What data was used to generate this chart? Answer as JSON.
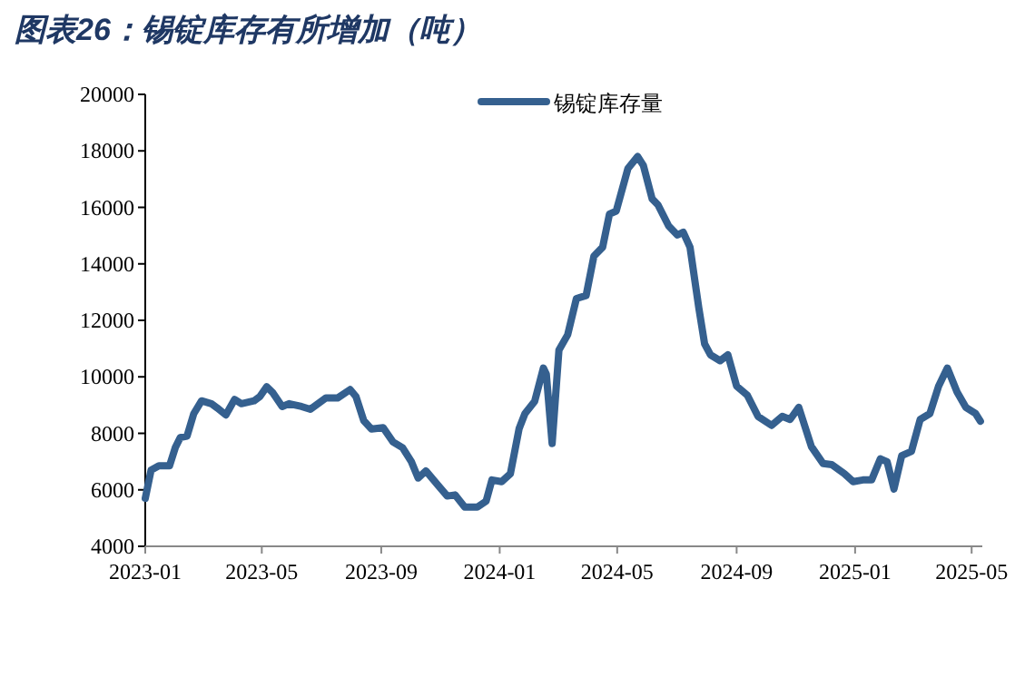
{
  "chart_data": {
    "type": "line",
    "title": "图表26：锡锭库存有所增加（吨）",
    "x": [
      "2023-01-01",
      "2023-01-07",
      "2023-01-15",
      "2023-01-26",
      "2023-02-01",
      "2023-02-06",
      "2023-02-13",
      "2023-02-20",
      "2023-02-28",
      "2023-03-10",
      "2023-03-16",
      "2023-03-25",
      "2023-04-03",
      "2023-04-10",
      "2023-04-23",
      "2023-04-29",
      "2023-05-06",
      "2023-05-12",
      "2023-05-22",
      "2023-05-29",
      "2023-06-11",
      "2023-06-20",
      "2023-07-06",
      "2023-07-18",
      "2023-07-31",
      "2023-08-06",
      "2023-08-14",
      "2023-08-22",
      "2023-09-03",
      "2023-09-13",
      "2023-09-23",
      "2023-10-02",
      "2023-10-09",
      "2023-10-17",
      "2023-10-30",
      "2023-11-08",
      "2023-11-16",
      "2023-11-26",
      "2023-12-09",
      "2023-12-18",
      "2023-12-24",
      "2024-01-03",
      "2024-01-12",
      "2024-01-21",
      "2024-01-27",
      "2024-02-06",
      "2024-02-15",
      "2024-02-18",
      "2024-02-24",
      "2024-03-02",
      "2024-03-11",
      "2024-03-20",
      "2024-03-30",
      "2024-04-07",
      "2024-04-16",
      "2024-04-23",
      "2024-04-30",
      "2024-05-12",
      "2024-05-22",
      "2024-05-28",
      "2024-06-06",
      "2024-06-12",
      "2024-06-23",
      "2024-07-02",
      "2024-07-08",
      "2024-07-15",
      "2024-07-24",
      "2024-07-30",
      "2024-08-05",
      "2024-08-15",
      "2024-08-23",
      "2024-09-01",
      "2024-09-12",
      "2024-09-23",
      "2024-10-07",
      "2024-10-18",
      "2024-10-26",
      "2024-11-04",
      "2024-11-17",
      "2024-11-29",
      "2024-12-08",
      "2024-12-21",
      "2024-12-30",
      "2025-01-09",
      "2025-01-18",
      "2025-01-27",
      "2025-02-03",
      "2025-02-10",
      "2025-02-18",
      "2025-02-28",
      "2025-03-09",
      "2025-03-19",
      "2025-03-28",
      "2025-04-06",
      "2025-04-16",
      "2025-04-25",
      "2025-05-05",
      "2025-05-10"
    ],
    "series": [
      {
        "name": "锡锭库存量",
        "color": "#35608f",
        "values": [
          5700,
          6700,
          6850,
          6850,
          7500,
          7850,
          7900,
          8700,
          9150,
          9050,
          8900,
          8650,
          9200,
          9050,
          9150,
          9300,
          9650,
          9450,
          8950,
          9050,
          8950,
          8850,
          9250,
          9250,
          9550,
          9300,
          8450,
          8150,
          8200,
          7700,
          7490,
          7000,
          6420,
          6670,
          6140,
          5780,
          5820,
          5390,
          5390,
          5600,
          6350,
          6290,
          6570,
          8170,
          8700,
          9130,
          10310,
          10100,
          7640,
          10950,
          11490,
          12770,
          12880,
          14270,
          14590,
          15760,
          15870,
          17370,
          17800,
          17480,
          16300,
          16090,
          15340,
          15020,
          15120,
          14590,
          12450,
          11170,
          10780,
          10570,
          10780,
          9670,
          9350,
          8600,
          8280,
          8600,
          8490,
          8920,
          7530,
          6930,
          6890,
          6570,
          6290,
          6350,
          6350,
          7100,
          6990,
          6030,
          7210,
          7360,
          8490,
          8700,
          9670,
          10310,
          9460,
          8920,
          8700,
          8430
        ]
      }
    ],
    "xlim": [
      "2023-01-01",
      "2025-05-12"
    ],
    "xticks": [
      "2023-01",
      "2023-05",
      "2023-09",
      "2024-01",
      "2024-05",
      "2024-09",
      "2025-01",
      "2025-05"
    ],
    "ylim": [
      4000,
      20000
    ],
    "yticks": [
      4000,
      6000,
      8000,
      10000,
      12000,
      14000,
      16000,
      18000,
      20000
    ],
    "legend": "top",
    "line_style": "solid"
  }
}
